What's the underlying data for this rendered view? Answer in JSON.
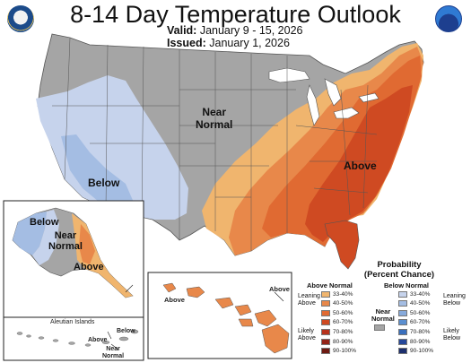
{
  "header": {
    "title": "8-14 Day Temperature Outlook",
    "valid_label": "Valid:",
    "valid_value": "January 9 - 15, 2026",
    "issued_label": "Issued:",
    "issued_value": "January 1, 2026"
  },
  "map_labels": {
    "near_normal_l1": "Near",
    "near_normal_l2": "Normal",
    "below": "Below",
    "above": "Above"
  },
  "alaska": {
    "below": "Below",
    "near_l1": "Near",
    "near_l2": "Normal",
    "above": "Above"
  },
  "hawaii": {
    "above_left": "Above",
    "above_right": "Above"
  },
  "aleutian": {
    "title": "Aleutian Islands",
    "below": "Below",
    "above": "Above",
    "near_l1": "Near",
    "near_l2": "Normal"
  },
  "legend": {
    "title_l1": "Probability",
    "title_l2": "(Percent Chance)",
    "above_header": "Above Normal",
    "below_header": "Below Normal",
    "near_l1": "Near",
    "near_l2": "Normal",
    "leaning_above_l1": "Leaning",
    "leaning_above_l2": "Above",
    "likely_above_l1": "Likely",
    "likely_above_l2": "Above",
    "leaning_below_l1": "Leaning",
    "leaning_below_l2": "Below",
    "likely_below_l1": "Likely",
    "likely_below_l2": "Below",
    "ranges": [
      "33-40%",
      "40-50%",
      "50-60%",
      "60-70%",
      "70-80%",
      "80-90%",
      "90-100%"
    ],
    "above_colors": [
      "#f0b56e",
      "#e8884a",
      "#e06a32",
      "#cf4a22",
      "#b7321c",
      "#932317",
      "#6e1a12"
    ],
    "below_colors": [
      "#c6d3ec",
      "#a4bde3",
      "#87aadb",
      "#5b8fd0",
      "#3a6fbc",
      "#26489b",
      "#1d2f6e"
    ],
    "near_color": "#a5a5a5"
  },
  "colors": {
    "near_normal": "#a5a5a5",
    "below_33_40": "#c6d3ec",
    "below_40_50": "#a4bde3",
    "above_33_40": "#f0b56e",
    "above_40_50": "#e8884a",
    "above_50_60": "#e06a32",
    "above_60_70": "#cf4a22",
    "water": "#ffffff"
  },
  "logos": {
    "left": "doc-seal-icon",
    "right": "noaa-logo-icon"
  }
}
